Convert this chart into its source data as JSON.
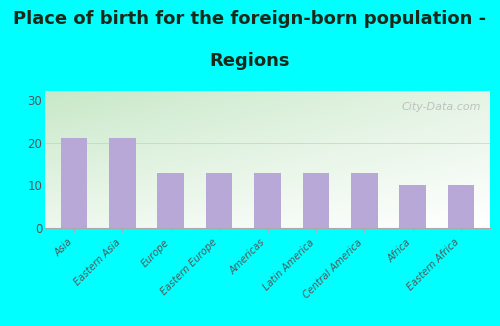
{
  "categories": [
    "Asia",
    "Eastern Asia",
    "Europe",
    "Eastern Europe",
    "Americas",
    "Latin America",
    "Central America",
    "Africa",
    "Eastern Africa"
  ],
  "values": [
    21,
    21,
    13,
    13,
    13,
    13,
    13,
    10,
    10
  ],
  "bar_color": "#b8a8d8",
  "figure_bg": "#00ffff",
  "plot_bg_light": "#f5fff5",
  "plot_bg_dark": "#d0edd0",
  "title_line1": "Place of birth for the foreign-born population -",
  "title_line2": "Regions",
  "title_fontsize": 13,
  "title_fontweight": "bold",
  "title_color": "#1a2a1a",
  "ylim": [
    0,
    32
  ],
  "yticks": [
    0,
    10,
    20,
    30
  ],
  "tick_color": "#555555",
  "watermark": "City-Data.com",
  "watermark_color": "#bbbbbb"
}
